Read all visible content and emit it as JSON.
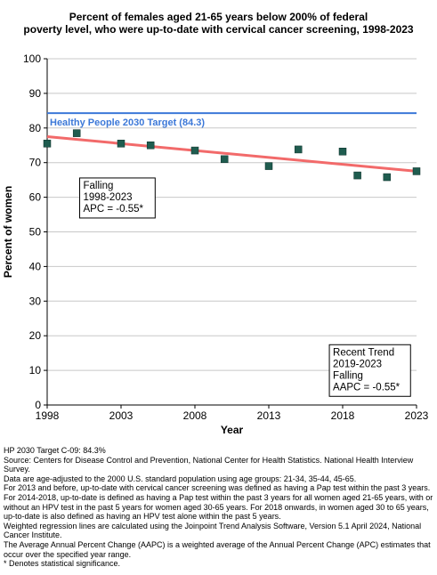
{
  "title_lines": [
    "Percent of females aged 21-65 years below 200% of federal",
    "poverty level, who were up-to-date with cervical cancer screening, 1998-2023"
  ],
  "chart_data": {
    "type": "scatter",
    "xlabel": "Year",
    "ylabel": "Percent of women",
    "xlim": [
      1998,
      2023
    ],
    "ylim": [
      0,
      100
    ],
    "xticks": [
      1998,
      2003,
      2008,
      2013,
      2018,
      2023
    ],
    "yticks": [
      0,
      10,
      20,
      30,
      40,
      50,
      60,
      70,
      80,
      90,
      100
    ],
    "grid": true,
    "points": {
      "x": [
        1998,
        2000,
        2003,
        2005,
        2008,
        2010,
        2013,
        2015,
        2018,
        2019,
        2021,
        2023
      ],
      "y": [
        75.5,
        78.5,
        75.5,
        75.0,
        73.5,
        71.0,
        69.0,
        73.8,
        73.2,
        66.3,
        65.8,
        67.5
      ],
      "color": "#1f5c4f"
    },
    "trend_line": {
      "x": [
        1998,
        2023
      ],
      "y": [
        77.5,
        67.5
      ],
      "color": "#f26a6a"
    },
    "target": {
      "label": "Healthy People 2030 Target (84.3)",
      "value": 84.3,
      "color": "#3c78d8"
    },
    "annotations": [
      {
        "lines": [
          "Falling",
          "1998-2023",
          "APC = -0.55*"
        ],
        "x": 2000.2,
        "y": 54
      },
      {
        "lines": [
          "Recent Trend",
          "2019-2023",
          "Falling",
          "AAPC = -0.55*"
        ],
        "x": 2017.1,
        "y": 2.5
      }
    ]
  },
  "footnotes": [
    "HP 2030 Target C-09: 84.3%",
    "Source: Centers for Disease Control and Prevention, National Center for Health Statistics. National Health Interview Survey.",
    "Data are age-adjusted to the 2000 U.S. standard population using age groups: 21-34, 35-44, 45-65.",
    "For 2013 and before, up-to-date with cervical cancer screening was defined as having a Pap test within the past 3 years. For 2014-2018, up-to-date is defined as having a Pap test within the past 3 years for all women aged 21-65 years, with or without an HPV test in the past 5 years for women aged 30-65 years.  For 2018 onwards, in women aged 30 to 65 years, up-to-date is also defined as having an HPV test alone within the past 5 years.",
    "Weighted regression lines are calculated using the Joinpoint Trend Analysis Software, Version 5.1 April 2024, National Cancer Institute.",
    "The Average Annual Percent Change (AAPC) is a weighted average of the Annual Percent Change (APC) estimates that occur over the specified year range.",
    "* Denotes statistical significance."
  ]
}
